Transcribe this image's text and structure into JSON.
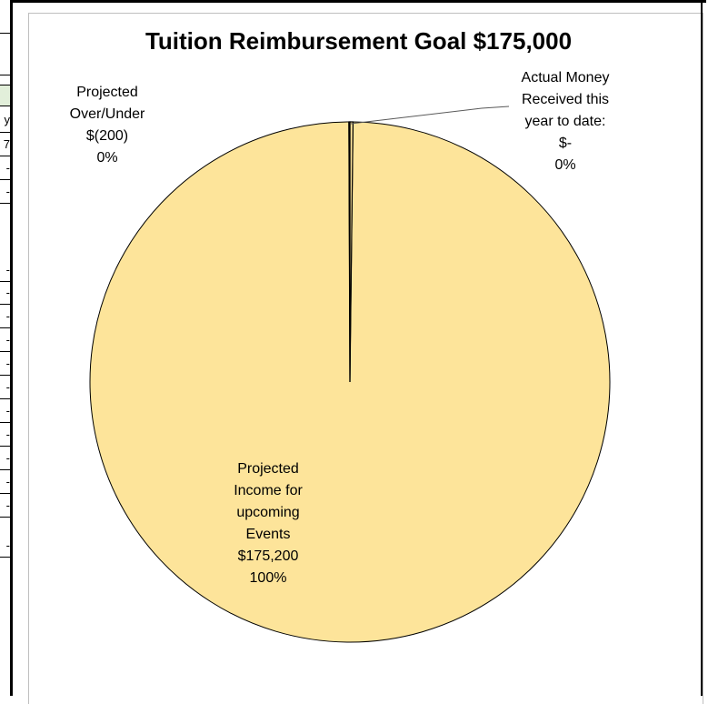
{
  "sheet_strip": {
    "cells": [
      "y",
      "7",
      "-",
      "-",
      "-",
      "-",
      "-",
      "-",
      "-",
      "-",
      "-",
      "-",
      "-",
      "-",
      "-",
      "-"
    ]
  },
  "colors": {
    "slice_fill": "#fde49a",
    "slice_stroke": "#000000",
    "sheet_green": "#e2efda"
  },
  "chart_data": {
    "type": "pie",
    "title": "Tuition Reimbursement Goal $175,000",
    "slices": [
      {
        "label_lines": [
          "Actual Money",
          "Received this",
          "year to date:",
          "$-",
          "0%"
        ],
        "value": 0,
        "percent": "0%"
      },
      {
        "label_lines": [
          "Projected",
          "Income for",
          "upcoming",
          "Events",
          "$175,200",
          "100%"
        ],
        "value": 175200,
        "percent": "100%"
      },
      {
        "label_lines": [
          "Projected",
          "Over/Under",
          "$(200)",
          "0%"
        ],
        "value": -200,
        "percent": "0%"
      }
    ]
  }
}
